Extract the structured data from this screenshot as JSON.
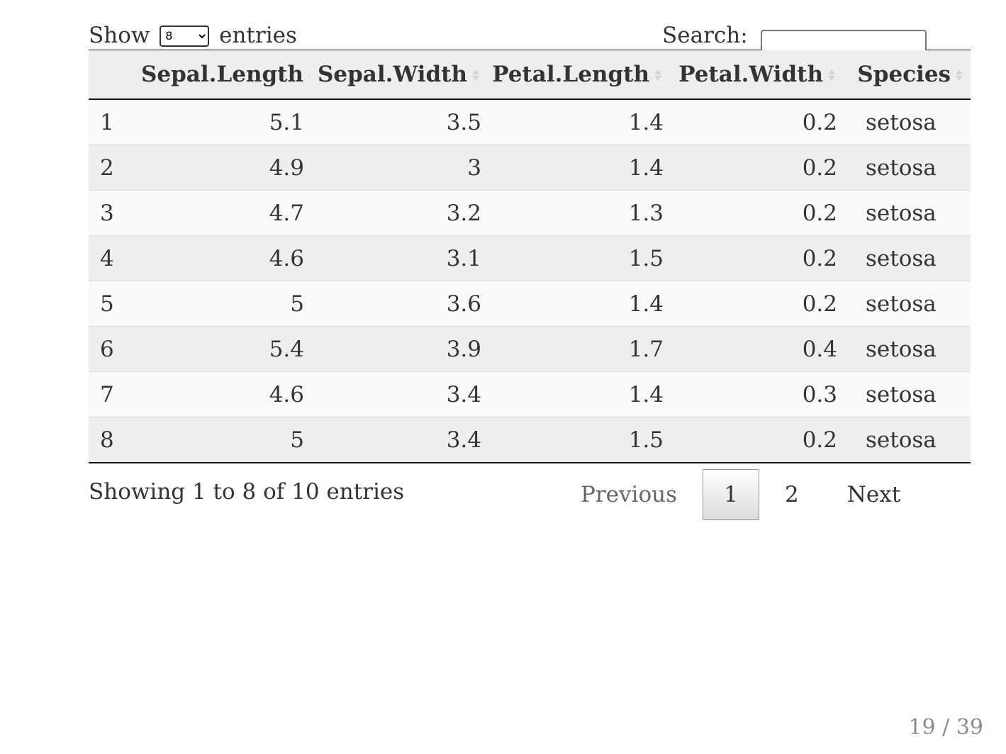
{
  "length_control": {
    "prefix": "Show",
    "selected": "8",
    "suffix": "entries"
  },
  "search": {
    "label": "Search:",
    "value": ""
  },
  "table": {
    "columns": [
      "",
      "Sepal.Length",
      "Sepal.Width",
      "Petal.Length",
      "Petal.Width",
      "Species"
    ],
    "rows": [
      [
        "1",
        "5.1",
        "3.5",
        "1.4",
        "0.2",
        "setosa"
      ],
      [
        "2",
        "4.9",
        "3",
        "1.4",
        "0.2",
        "setosa"
      ],
      [
        "3",
        "4.7",
        "3.2",
        "1.3",
        "0.2",
        "setosa"
      ],
      [
        "4",
        "4.6",
        "3.1",
        "1.5",
        "0.2",
        "setosa"
      ],
      [
        "5",
        "5",
        "3.6",
        "1.4",
        "0.2",
        "setosa"
      ],
      [
        "6",
        "5.4",
        "3.9",
        "1.7",
        "0.4",
        "setosa"
      ],
      [
        "7",
        "4.6",
        "3.4",
        "1.4",
        "0.3",
        "setosa"
      ],
      [
        "8",
        "5",
        "3.4",
        "1.5",
        "0.2",
        "setosa"
      ]
    ]
  },
  "info": "Showing 1 to 8 of 10 entries",
  "pagination": {
    "previous": "Previous",
    "pages": [
      "1",
      "2"
    ],
    "current": "1",
    "next": "Next"
  },
  "slide_number": "19 / 39"
}
